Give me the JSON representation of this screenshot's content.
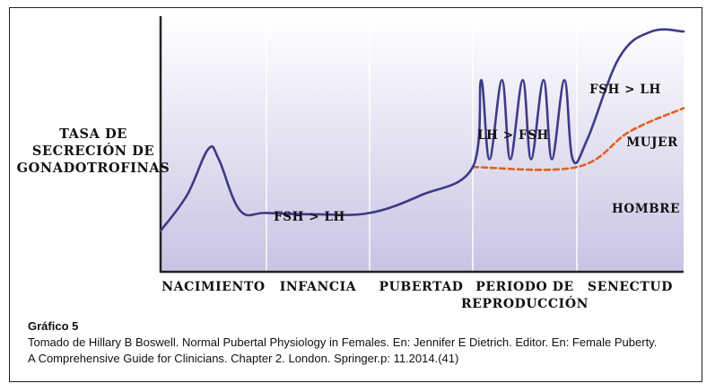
{
  "chart_data": {
    "type": "line",
    "y_axis_label_lines": [
      "TASA DE",
      "SECRECIÓN DE",
      "GONADOTROFINAS"
    ],
    "categories": [
      "NACIMIENTO",
      "INFANCIA",
      "PUBERTAD",
      "PERIODO DE REPRODUCCIÓN",
      "SENECTUD"
    ],
    "category_label_lines": [
      [
        "NACIMIENTO"
      ],
      [
        "INFANCIA"
      ],
      [
        "PUBERTAD"
      ],
      [
        "PERIODO DE",
        "REPRODUCCIÓN"
      ],
      [
        "SENECTUD"
      ]
    ],
    "x_range": [
      0,
      5
    ],
    "y_range": [
      0,
      100
    ],
    "grid": "vertical dividers between stages",
    "series": [
      {
        "name": "MUJER",
        "style": "solid",
        "color": "#3f3a86",
        "points": [
          [
            0.0,
            16
          ],
          [
            0.25,
            30
          ],
          [
            0.45,
            48
          ],
          [
            0.55,
            44
          ],
          [
            0.75,
            24
          ],
          [
            1.0,
            23
          ],
          [
            1.5,
            22.5
          ],
          [
            2.0,
            23
          ],
          [
            2.5,
            30
          ],
          [
            3.0,
            41
          ],
          [
            3.08,
            75
          ],
          [
            3.16,
            44
          ],
          [
            3.28,
            75
          ],
          [
            3.36,
            44
          ],
          [
            3.48,
            75
          ],
          [
            3.56,
            44
          ],
          [
            3.68,
            75
          ],
          [
            3.76,
            44
          ],
          [
            3.88,
            75
          ],
          [
            3.96,
            44
          ],
          [
            4.1,
            52
          ],
          [
            4.4,
            84
          ],
          [
            4.7,
            94
          ],
          [
            5.0,
            94
          ]
        ]
      },
      {
        "name": "HOMBRE",
        "style": "dashed",
        "color": "#e06020",
        "points": [
          [
            3.0,
            41
          ],
          [
            4.0,
            41
          ],
          [
            4.5,
            55
          ],
          [
            5.0,
            64
          ]
        ]
      }
    ],
    "annotations": [
      {
        "text": "FSH > LH",
        "stage": "INFANCIA"
      },
      {
        "text": "LH > FSH",
        "stage": "PERIODO DE REPRODUCCIÓN"
      },
      {
        "text": "FSH > LH",
        "stage": "SENECTUD"
      },
      {
        "text": "MUJER",
        "series": "MUJER"
      },
      {
        "text": "HOMBRE",
        "series": "HOMBRE"
      }
    ],
    "colors": {
      "background_top": "#ffffff",
      "background_bottom": "#c9c3e3",
      "axis": "#222222",
      "divider": "#ffffff"
    }
  },
  "caption": {
    "title": "Gráfico 5",
    "lines": [
      "Tomado de Hillary B Boswell. Normal Pubertal Physiology in Females. En: Jennifer E Dietrich. Editor. En: Female Puberty.",
      "A Comprehensive Guide for Clinicians. Chapter 2. London. Springer.p: 11.2014.(41)"
    ]
  }
}
